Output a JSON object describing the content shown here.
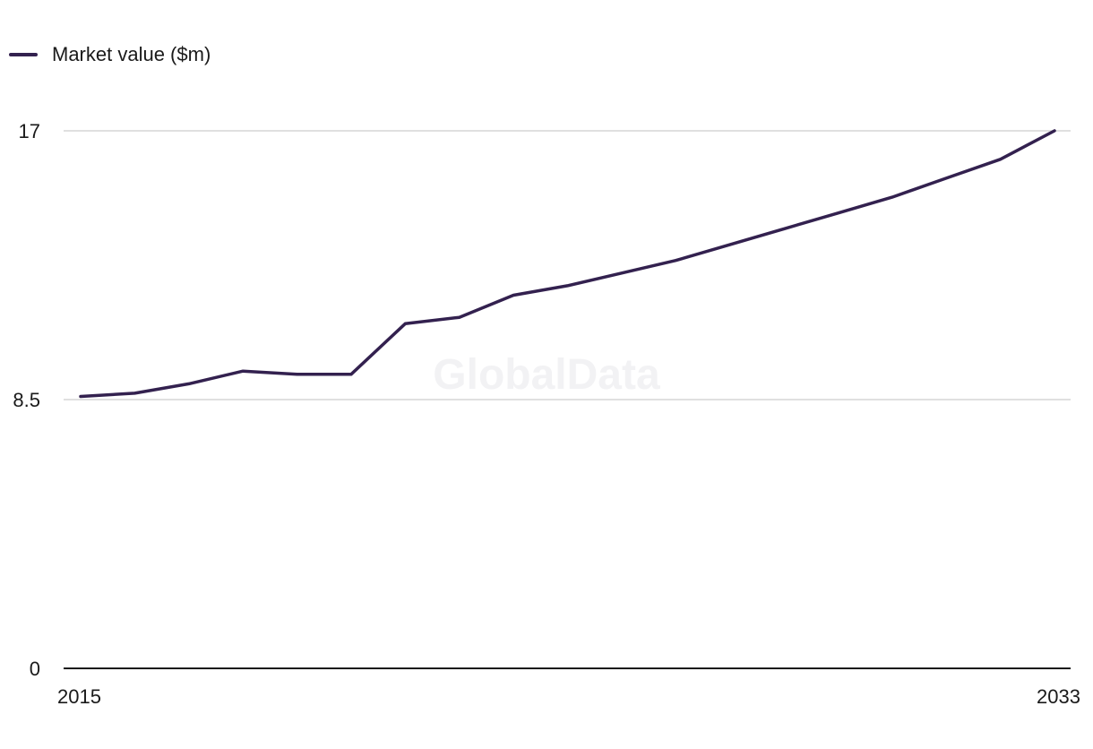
{
  "legend": {
    "label": "Market value ($m)"
  },
  "watermark": "GlobalData",
  "colors": {
    "series": "#33214f",
    "grid": "#d6d6d6",
    "axis": "#1a1a1a"
  },
  "chart_data": {
    "type": "line",
    "title": "",
    "xlabel": "",
    "ylabel": "",
    "x": [
      2015,
      2016,
      2017,
      2018,
      2019,
      2020,
      2021,
      2022,
      2023,
      2024,
      2025,
      2026,
      2027,
      2028,
      2029,
      2030,
      2031,
      2032,
      2033
    ],
    "series": [
      {
        "name": "Market value ($m)",
        "values": [
          8.6,
          8.7,
          9.0,
          9.4,
          9.3,
          9.3,
          10.9,
          11.1,
          11.8,
          12.1,
          12.5,
          12.9,
          13.4,
          13.9,
          14.4,
          14.9,
          15.5,
          16.1,
          17.0
        ]
      }
    ],
    "ylim": [
      0,
      17
    ],
    "y_ticks": [
      0,
      8.5,
      17
    ],
    "x_tick_labels": [
      "2015",
      "2033"
    ],
    "grid": true,
    "legend_position": "top-left"
  }
}
